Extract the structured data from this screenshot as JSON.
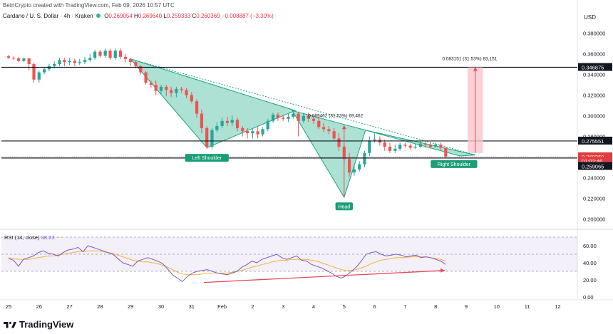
{
  "header": {
    "credit": "BeInCrypto created with TradingView.com, Feb 09, 2026 10:57 UTC"
  },
  "symbol": {
    "name": "Cardano / U. S. Dollar · 4h · Kraken",
    "o_label": "O",
    "o": "0.269054",
    "h_label": "H",
    "h": "0.269640",
    "l_label": "L",
    "l": "0.259333",
    "c_label": "C",
    "c": "0.260369",
    "change": "−0.008887 (−3.30%)"
  },
  "currency": "USD",
  "colors": {
    "up": "#26a69a",
    "down": "#ef5350",
    "pattern_fill": "#7fd1bd",
    "pattern_stroke": "#1aa384",
    "label_bg": "#1b9e77",
    "rsi_line": "#7e57c2",
    "rsi_ma": "#f0b33c",
    "divergence": "#e8495a",
    "price_tag": "#e03e3e"
  },
  "chart_data": [
    {
      "type": "candlestick",
      "ylim": [
        0.19,
        0.39
      ],
      "y_ticks": [
        "0.380000",
        "0.360000",
        "0.340000",
        "0.320000",
        "0.300000",
        "0.280000",
        "0.260000",
        "0.240000",
        "0.220000",
        "0.200000"
      ],
      "x_ticks": [
        "25",
        "26",
        "27",
        "28",
        "29",
        "30",
        "31",
        "Feb",
        "2",
        "3",
        "4",
        "5",
        "6",
        "7",
        "8",
        "9",
        "10",
        "11",
        "12"
      ],
      "price_tags": [
        {
          "label": "0.346875",
          "value": 0.346875,
          "style": "dark"
        },
        {
          "label": "0.275551",
          "value": 0.275551,
          "style": "dark"
        },
        {
          "label": "0.260369",
          "value": 0.260369,
          "style": "red"
        },
        {
          "label": "01:02:46",
          "value": 0.2562,
          "style": "red"
        },
        {
          "label": "0.259065",
          "value": 0.251,
          "style": "dark"
        }
      ],
      "horizontal_lines": [
        0.346875,
        0.275551,
        0.259065
      ],
      "annotations": {
        "left_shoulder": "Left Shoulder",
        "head": "Head",
        "right_shoulder": "Right Shoulder",
        "measure_1": "0.069462 (31.53%) 69,462",
        "measure_2": "0.083151 (31.53%) 83,151"
      },
      "candles": [
        [
          25.0,
          0.3575,
          0.356,
          0.359,
          0.355
        ],
        [
          25.17,
          0.356,
          0.3555,
          0.3575,
          0.354
        ],
        [
          25.33,
          0.3555,
          0.353,
          0.357,
          0.352
        ],
        [
          25.5,
          0.353,
          0.3555,
          0.356,
          0.352
        ],
        [
          25.67,
          0.3555,
          0.35,
          0.356,
          0.344
        ],
        [
          25.83,
          0.35,
          0.335,
          0.351,
          0.332
        ],
        [
          26.0,
          0.335,
          0.342,
          0.344,
          0.332
        ],
        [
          26.17,
          0.342,
          0.345,
          0.347,
          0.34
        ],
        [
          26.33,
          0.345,
          0.348,
          0.35,
          0.343
        ],
        [
          26.5,
          0.348,
          0.35,
          0.353,
          0.346
        ],
        [
          26.67,
          0.35,
          0.354,
          0.356,
          0.348
        ],
        [
          26.83,
          0.354,
          0.352,
          0.356,
          0.348
        ],
        [
          27.0,
          0.352,
          0.353,
          0.356,
          0.349
        ],
        [
          27.17,
          0.353,
          0.351,
          0.355,
          0.348
        ],
        [
          27.33,
          0.351,
          0.352,
          0.355,
          0.349
        ],
        [
          27.5,
          0.352,
          0.354,
          0.357,
          0.35
        ],
        [
          27.67,
          0.354,
          0.356,
          0.36,
          0.352
        ],
        [
          27.83,
          0.356,
          0.362,
          0.364,
          0.354
        ],
        [
          28.0,
          0.362,
          0.358,
          0.364,
          0.356
        ],
        [
          28.17,
          0.358,
          0.363,
          0.365,
          0.356
        ],
        [
          28.33,
          0.363,
          0.356,
          0.365,
          0.354
        ],
        [
          28.5,
          0.356,
          0.363,
          0.365,
          0.354
        ],
        [
          28.67,
          0.363,
          0.357,
          0.365,
          0.355
        ],
        [
          28.83,
          0.357,
          0.355,
          0.36,
          0.352
        ],
        [
          29.0,
          0.355,
          0.352,
          0.356,
          0.348
        ],
        [
          29.17,
          0.352,
          0.348,
          0.353,
          0.346
        ],
        [
          29.33,
          0.348,
          0.342,
          0.349,
          0.34
        ],
        [
          29.5,
          0.342,
          0.332,
          0.343,
          0.33
        ],
        [
          29.67,
          0.332,
          0.33,
          0.334,
          0.327
        ],
        [
          29.83,
          0.33,
          0.324,
          0.334,
          0.32
        ],
        [
          30.0,
          0.324,
          0.328,
          0.33,
          0.32
        ],
        [
          30.17,
          0.328,
          0.325,
          0.33,
          0.319
        ],
        [
          30.33,
          0.325,
          0.322,
          0.328,
          0.318
        ],
        [
          30.5,
          0.322,
          0.326,
          0.328,
          0.318
        ],
        [
          30.67,
          0.326,
          0.325,
          0.328,
          0.322
        ],
        [
          30.83,
          0.325,
          0.32,
          0.327,
          0.317
        ],
        [
          31.0,
          0.32,
          0.314,
          0.323,
          0.312
        ],
        [
          31.17,
          0.314,
          0.302,
          0.316,
          0.298
        ],
        [
          31.33,
          0.302,
          0.288,
          0.306,
          0.283
        ],
        [
          31.5,
          0.288,
          0.27,
          0.29,
          0.268
        ],
        [
          31.67,
          0.27,
          0.286,
          0.288,
          0.268
        ],
        [
          31.83,
          0.286,
          0.29,
          0.294,
          0.284
        ],
        [
          32.0,
          0.29,
          0.295,
          0.298,
          0.288
        ],
        [
          32.17,
          0.295,
          0.293,
          0.299,
          0.29
        ],
        [
          32.33,
          0.293,
          0.296,
          0.3,
          0.29
        ],
        [
          32.5,
          0.296,
          0.288,
          0.298,
          0.285
        ],
        [
          32.67,
          0.288,
          0.285,
          0.29,
          0.28
        ],
        [
          32.83,
          0.285,
          0.283,
          0.288,
          0.278
        ],
        [
          33.0,
          0.283,
          0.285,
          0.287,
          0.278
        ],
        [
          33.17,
          0.285,
          0.282,
          0.289,
          0.278
        ],
        [
          33.33,
          0.282,
          0.287,
          0.289,
          0.28
        ],
        [
          33.5,
          0.287,
          0.295,
          0.297,
          0.285
        ],
        [
          33.67,
          0.295,
          0.301,
          0.303,
          0.293
        ],
        [
          33.83,
          0.301,
          0.298,
          0.303,
          0.295
        ],
        [
          34.0,
          0.298,
          0.297,
          0.301,
          0.295
        ],
        [
          34.17,
          0.297,
          0.299,
          0.302,
          0.294
        ],
        [
          34.33,
          0.299,
          0.302,
          0.305,
          0.297
        ],
        [
          34.5,
          0.302,
          0.295,
          0.304,
          0.28
        ],
        [
          34.67,
          0.295,
          0.3,
          0.303,
          0.293
        ],
        [
          34.83,
          0.3,
          0.297,
          0.303,
          0.294
        ],
        [
          35.0,
          0.297,
          0.295,
          0.3,
          0.292
        ],
        [
          35.17,
          0.295,
          0.289,
          0.299,
          0.287
        ],
        [
          35.33,
          0.289,
          0.287,
          0.293,
          0.284
        ],
        [
          35.5,
          0.287,
          0.285,
          0.29,
          0.282
        ],
        [
          35.67,
          0.285,
          0.278,
          0.288,
          0.276
        ],
        [
          35.83,
          0.278,
          0.27,
          0.283,
          0.266
        ],
        [
          36.0,
          0.27,
          0.258,
          0.272,
          0.254
        ],
        [
          36.17,
          0.258,
          0.245,
          0.264,
          0.241
        ],
        [
          36.33,
          0.245,
          0.248,
          0.252,
          0.242
        ],
        [
          36.5,
          0.248,
          0.253,
          0.256,
          0.246
        ],
        [
          36.67,
          0.253,
          0.264,
          0.266,
          0.25
        ],
        [
          36.83,
          0.264,
          0.276,
          0.28,
          0.261
        ],
        [
          37.0,
          0.276,
          0.277,
          0.283,
          0.274
        ],
        [
          37.17,
          0.277,
          0.274,
          0.28,
          0.271
        ],
        [
          37.33,
          0.274,
          0.27,
          0.277,
          0.266
        ],
        [
          37.5,
          0.27,
          0.266,
          0.274,
          0.264
        ],
        [
          37.67,
          0.266,
          0.268,
          0.272,
          0.264
        ],
        [
          37.83,
          0.268,
          0.272,
          0.274,
          0.266
        ],
        [
          38.0,
          0.272,
          0.271,
          0.274,
          0.269
        ],
        [
          38.17,
          0.271,
          0.269,
          0.273,
          0.267
        ],
        [
          38.33,
          0.269,
          0.27,
          0.273,
          0.268
        ],
        [
          38.5,
          0.27,
          0.273,
          0.275,
          0.269
        ],
        [
          38.67,
          0.273,
          0.272,
          0.275,
          0.269
        ],
        [
          38.83,
          0.272,
          0.27,
          0.274,
          0.268
        ],
        [
          39.0,
          0.27,
          0.272,
          0.274,
          0.269
        ],
        [
          39.17,
          0.272,
          0.269,
          0.274,
          0.266
        ],
        [
          39.33,
          0.269,
          0.2604,
          0.2696,
          0.2593
        ]
      ],
      "measure": [
        {
          "x": 36.0,
          "from": 0.221,
          "to": 0.2905
        },
        {
          "x": 40.3,
          "from": 0.264,
          "to": 0.3469
        }
      ]
    },
    {
      "type": "line",
      "title": "RSI (14, close)",
      "value_label": "38.23",
      "ylim": [
        0,
        70
      ],
      "y_ticks": [
        "60.00",
        "40.00",
        "20.00",
        "0.00"
      ],
      "band": [
        30,
        70
      ],
      "mid_line": 50,
      "series": [
        {
          "values": [
            45,
            43,
            36,
            44,
            46,
            48,
            52,
            54,
            51,
            50,
            48,
            52,
            55,
            56,
            58,
            53,
            60,
            58,
            56,
            54,
            52,
            50,
            45,
            40,
            38,
            36,
            42,
            44,
            46,
            44,
            42,
            39,
            33,
            26,
            22,
            18,
            24,
            28,
            30,
            31,
            32,
            30,
            28,
            27,
            26,
            28,
            30,
            35,
            38,
            42,
            40,
            44,
            46,
            48,
            50,
            46,
            44,
            46,
            48,
            43,
            42,
            38,
            36,
            34,
            31,
            28,
            24,
            22,
            25,
            30,
            35,
            42,
            50,
            52,
            53,
            50,
            48,
            49,
            50,
            49,
            47,
            48,
            49,
            46,
            47,
            46,
            44,
            42,
            38
          ]
        },
        {
          "values": [
            46,
            45,
            44,
            44,
            44,
            45,
            46,
            47,
            48,
            48,
            49,
            50,
            51,
            52,
            53,
            53,
            54,
            54,
            54,
            53,
            52,
            51,
            49,
            47,
            45,
            43,
            42,
            41,
            41,
            40,
            39,
            37,
            35,
            32,
            29,
            27,
            26,
            26,
            26,
            27,
            28,
            28,
            28,
            28,
            28,
            29,
            30,
            31,
            33,
            35,
            36,
            38,
            39,
            41,
            42,
            43,
            43,
            44,
            44,
            44,
            44,
            43,
            42,
            40,
            38,
            36,
            34,
            32,
            31,
            31,
            32,
            34,
            36,
            39,
            41,
            43,
            44,
            45,
            46,
            46,
            46,
            47,
            47,
            47,
            47,
            46,
            45,
            44,
            42
          ]
        }
      ],
      "divergence_line": {
        "from": [
          31.4,
          17
        ],
        "to": [
          39.3,
          31
        ]
      }
    }
  ],
  "logo_text": "TradingView"
}
